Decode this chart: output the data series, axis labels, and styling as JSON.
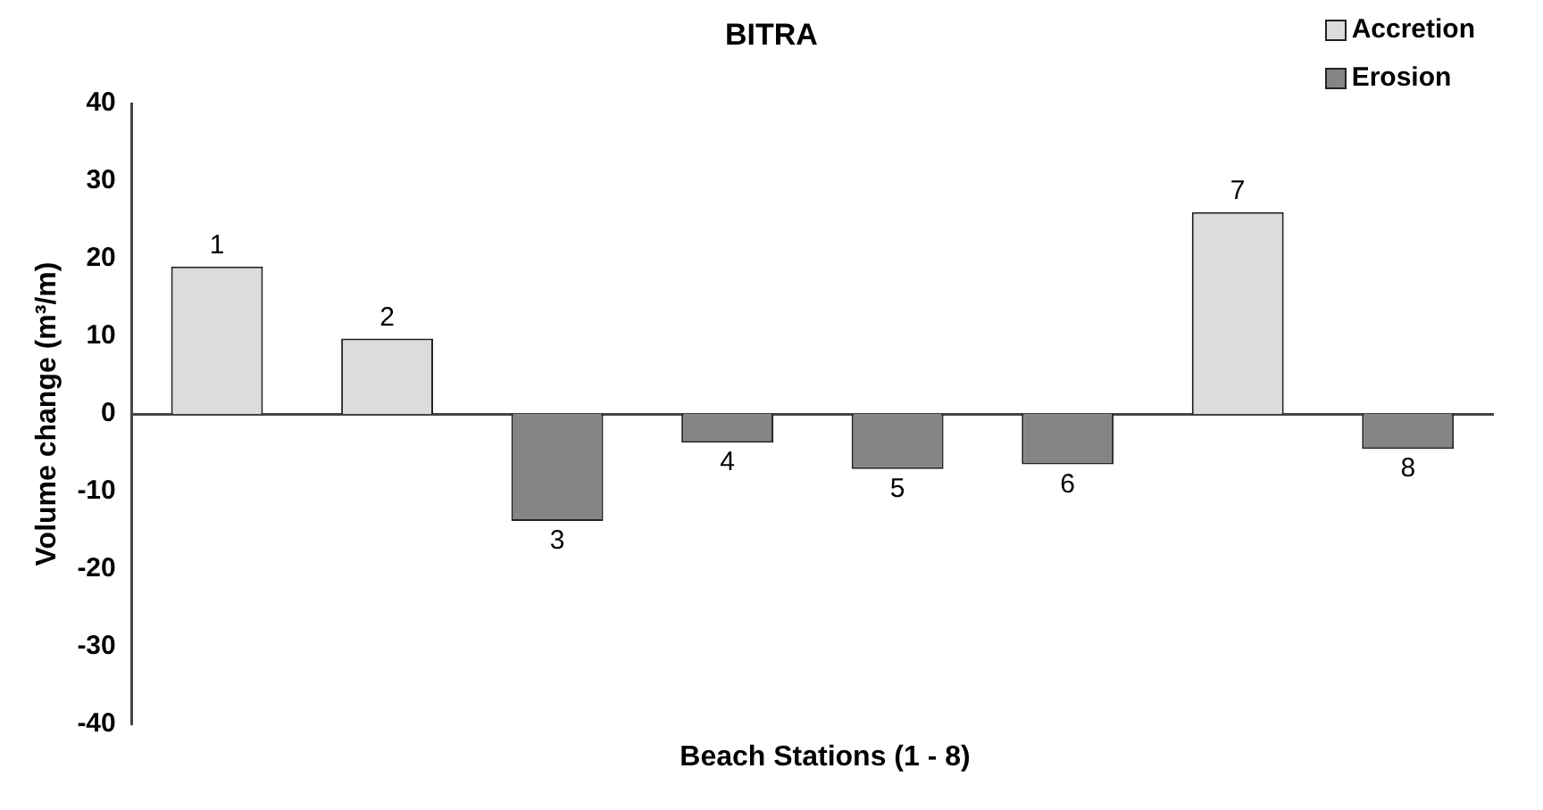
{
  "chart_data": {
    "type": "bar",
    "title": "BITRA",
    "xlabel": "Beach Stations (1 - 8)",
    "ylabel": "Volume change (m³/m)",
    "categories": [
      "1",
      "2",
      "3",
      "4",
      "5",
      "6",
      "7",
      "8"
    ],
    "series": [
      {
        "name": "Accretion",
        "color": "#dcdcdc",
        "values": [
          19,
          9.7,
          null,
          null,
          null,
          null,
          26,
          null
        ]
      },
      {
        "name": "Erosion",
        "color": "#858585",
        "values": [
          null,
          null,
          -13.8,
          -3.7,
          -7.1,
          -6.5,
          null,
          -4.5
        ]
      }
    ],
    "ylim": [
      -40,
      40
    ],
    "yticks": [
      -40,
      -30,
      -20,
      -10,
      0,
      10,
      20,
      30,
      40
    ],
    "grid": false,
    "legend": "top right"
  }
}
